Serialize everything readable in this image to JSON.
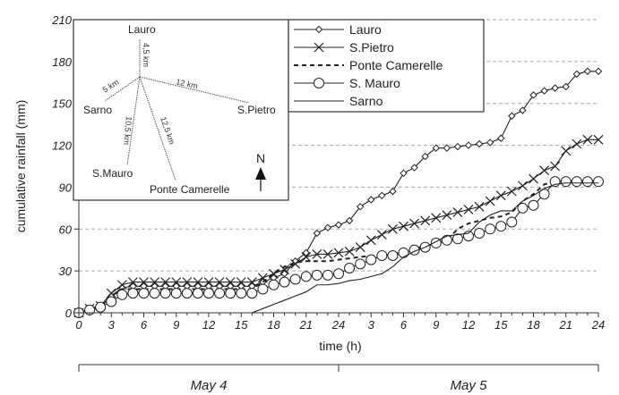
{
  "chart_data": {
    "type": "line",
    "xlabel": "time (h)",
    "ylabel": "cumulative rainfall (mm)",
    "xlim": [
      0,
      48
    ],
    "ylim": [
      0,
      210
    ],
    "yticks": [
      0,
      30,
      60,
      90,
      120,
      150,
      180,
      210
    ],
    "xtick_labels": [
      "0",
      "3",
      "6",
      "9",
      "12",
      "15",
      "18",
      "21",
      "24",
      "3",
      "6",
      "9",
      "12",
      "15",
      "18",
      "21",
      "24"
    ],
    "days": [
      "May 4",
      "May 5"
    ],
    "grid": "horizontal dashed",
    "legend_position": "top-center",
    "series": [
      {
        "name": "Lauro",
        "marker": "diamond",
        "x": [
          0,
          1,
          2,
          3,
          4,
          5,
          6,
          7,
          8,
          9,
          10,
          11,
          12,
          13,
          14,
          15,
          16,
          17,
          18,
          19,
          20,
          21,
          22,
          23,
          24,
          25,
          26,
          27,
          28,
          29,
          30,
          31,
          32,
          33,
          34,
          35,
          36,
          37,
          38,
          39,
          40,
          41,
          42,
          43,
          44,
          45,
          46,
          47,
          48
        ],
        "values": [
          0,
          2,
          4,
          12,
          18,
          19,
          19,
          19,
          19,
          19,
          19,
          19,
          19,
          19,
          19,
          19,
          19,
          22,
          25,
          28,
          37,
          43,
          57,
          61,
          63,
          66,
          76,
          81,
          84,
          87,
          100,
          104,
          112,
          118,
          118,
          119,
          120,
          121,
          122,
          125,
          141,
          145,
          156,
          159,
          161,
          162,
          171,
          173,
          173
        ]
      },
      {
        "name": "S.Pietro",
        "marker": "x",
        "x": [
          0,
          1,
          2,
          3,
          4,
          5,
          6,
          7,
          8,
          9,
          10,
          11,
          12,
          13,
          14,
          15,
          16,
          17,
          18,
          19,
          20,
          21,
          22,
          23,
          24,
          25,
          26,
          27,
          28,
          29,
          30,
          31,
          32,
          33,
          34,
          35,
          36,
          37,
          38,
          39,
          40,
          41,
          42,
          43,
          44,
          45,
          46,
          47,
          48
        ],
        "values": [
          0,
          3,
          5,
          14,
          20,
          22,
          22,
          22,
          22,
          22,
          22,
          22,
          22,
          22,
          22,
          22,
          22,
          25,
          28,
          31,
          35,
          40,
          42,
          42,
          43,
          44,
          47,
          52,
          56,
          60,
          62,
          64,
          66,
          68,
          70,
          72,
          74,
          76,
          80,
          84,
          87,
          91,
          96,
          102,
          105,
          116,
          121,
          124,
          124
        ]
      },
      {
        "name": "Ponte Camerelle",
        "marker": "none",
        "dash": "dashed",
        "x": [
          0,
          1,
          2,
          3,
          4,
          5,
          6,
          7,
          8,
          9,
          10,
          11,
          12,
          13,
          14,
          15,
          16,
          17,
          18,
          19,
          20,
          21,
          22,
          23,
          24,
          25,
          26,
          27,
          28,
          29,
          30,
          31,
          32,
          33,
          34,
          35,
          36,
          37,
          38,
          39,
          40,
          41,
          42,
          43,
          44,
          45,
          46,
          47,
          48
        ],
        "values": [
          0,
          2,
          4,
          12,
          17,
          17,
          17,
          17,
          17,
          17,
          17,
          17,
          17,
          17,
          17,
          17,
          17,
          22,
          28,
          33,
          36,
          37,
          37,
          37,
          38,
          39,
          40,
          41,
          41,
          42,
          44,
          46,
          48,
          50,
          52,
          60,
          64,
          66,
          68,
          69,
          72,
          80,
          85,
          92,
          94,
          94,
          94,
          94,
          94
        ]
      },
      {
        "name": "S. Mauro",
        "marker": "circle",
        "x": [
          0,
          1,
          2,
          3,
          4,
          5,
          6,
          7,
          8,
          9,
          10,
          11,
          12,
          13,
          14,
          15,
          16,
          17,
          18,
          19,
          20,
          21,
          22,
          23,
          24,
          25,
          26,
          27,
          28,
          29,
          30,
          31,
          32,
          33,
          34,
          35,
          36,
          37,
          38,
          39,
          40,
          41,
          42,
          43,
          44,
          45,
          46,
          47,
          48
        ],
        "values": [
          0,
          2,
          4,
          8,
          13,
          14,
          14,
          14,
          14,
          14,
          14,
          14,
          14,
          14,
          14,
          14,
          14,
          17,
          20,
          22,
          24,
          26,
          27,
          27,
          28,
          32,
          35,
          38,
          41,
          41,
          43,
          45,
          47,
          50,
          52,
          53,
          55,
          57,
          60,
          62,
          65,
          75,
          77,
          85,
          94,
          94,
          94,
          94,
          94
        ]
      },
      {
        "name": "Sarno",
        "marker": "none",
        "x": [
          16,
          17,
          18,
          19,
          20,
          21,
          22,
          23,
          24,
          25,
          26,
          27,
          28,
          29,
          30,
          31,
          32,
          33,
          34,
          35,
          36,
          37,
          38,
          39,
          40,
          41,
          42,
          43,
          44,
          45,
          46,
          47,
          48
        ],
        "values": [
          0,
          3,
          6,
          9,
          12,
          15,
          20,
          20,
          21,
          23,
          24,
          26,
          28,
          33,
          40,
          44,
          47,
          51,
          55,
          56,
          57,
          65,
          70,
          73,
          73,
          80,
          84,
          89,
          92,
          93,
          93,
          93,
          93
        ]
      }
    ],
    "inset_map": {
      "stations": [
        "Lauro",
        "Sarno",
        "S.Pietro",
        "S.Mauro",
        "Ponte Camerelle"
      ],
      "distances": [
        "4,5 km",
        "5 km",
        "12 km",
        "10,5 km",
        "12,5 km"
      ],
      "north": "N"
    }
  }
}
